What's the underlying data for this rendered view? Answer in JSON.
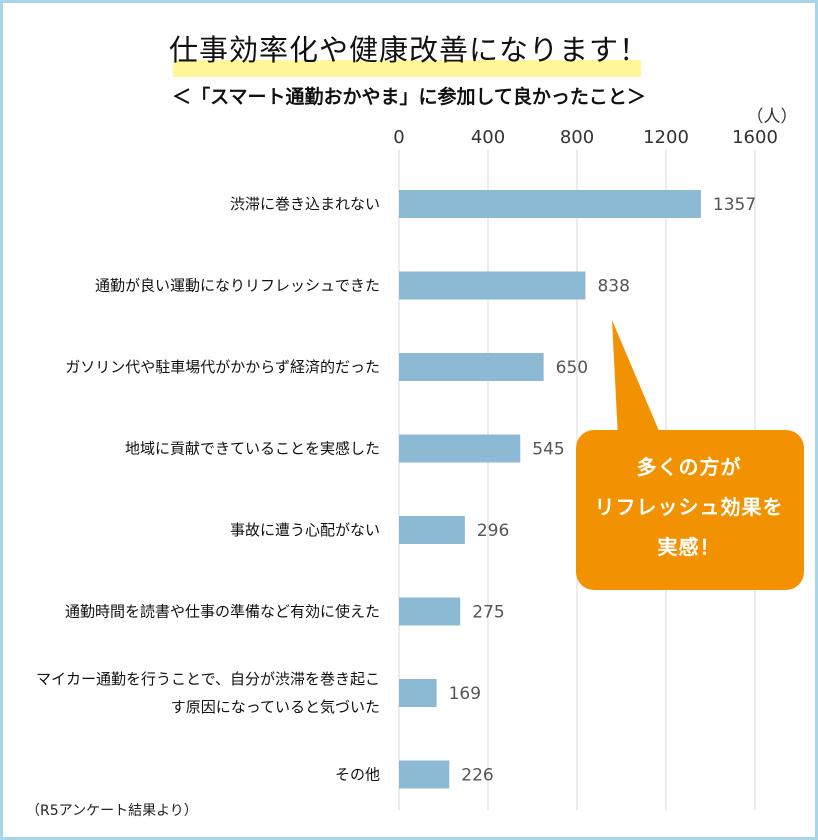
{
  "title": "仕事効率化や健康改善になります！",
  "subtitle": "＜「スマート通勤おかやま」に参加して良かったこと＞",
  "footnote": "（R5アンケート結果より）",
  "callout": {
    "lines": [
      "多くの方が",
      "リフレッシュ効果を",
      "実感！"
    ],
    "color": "#f39200"
  },
  "chart_data": {
    "type": "bar",
    "orientation": "horizontal",
    "unit": "（人）",
    "xlim": [
      0,
      1600
    ],
    "ticks": [
      0,
      400,
      800,
      1200,
      1600
    ],
    "tick_labels": [
      "0",
      "400",
      "800",
      "1200",
      "1600"
    ],
    "bar_color": "#8cb9d3",
    "grid": true,
    "categories": [
      [
        "渋滞に巻き込まれない"
      ],
      [
        "通勤が良い運動になりリフレッシュできた"
      ],
      [
        "ガソリン代や駐車場代がかからず経済的だった"
      ],
      [
        "地域に貢献できていることを実感した"
      ],
      [
        "事故に遭う心配がない"
      ],
      [
        "通勤時間を読書や仕事の準備など有効に使えた"
      ],
      [
        "マイカー通勤を行うことで、自分が渋滞を巻き起こ",
        "す原因になっていると気づいた"
      ],
      [
        "その他"
      ]
    ],
    "values": [
      1357,
      838,
      650,
      545,
      296,
      275,
      169,
      226
    ]
  }
}
